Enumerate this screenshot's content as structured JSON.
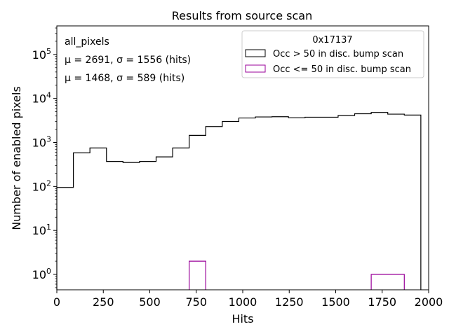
{
  "chart_data": {
    "type": "histogram",
    "title": "Results from source scan",
    "xlabel": "Hits",
    "ylabel": "Number of enabled pixels",
    "xlim": [
      0,
      2000
    ],
    "ylim_log10": [
      -0.35,
      5.65
    ],
    "y_scale": "log",
    "x_ticks": [
      0,
      250,
      500,
      750,
      1000,
      1250,
      1500,
      1750,
      2000
    ],
    "x_tick_labels": [
      "0",
      "250",
      "500",
      "750",
      "1000",
      "1250",
      "1500",
      "1750",
      "2000"
    ],
    "y_ticks_log10": [
      0,
      1,
      2,
      3,
      4,
      5
    ],
    "y_tick_labels": [
      {
        "base": "10",
        "exp": "0"
      },
      {
        "base": "10",
        "exp": "1"
      },
      {
        "base": "10",
        "exp": "2"
      },
      {
        "base": "10",
        "exp": "3"
      },
      {
        "base": "10",
        "exp": "4"
      },
      {
        "base": "10",
        "exp": "5"
      }
    ],
    "bin_edges": [
      0,
      89,
      178,
      267,
      356,
      445,
      534,
      623,
      712,
      801,
      890,
      979,
      1068,
      1157,
      1246,
      1335,
      1424,
      1513,
      1602,
      1691,
      1780,
      1869,
      1958
    ],
    "series": [
      {
        "name": "Occ > 50 in disc. bump scan",
        "color": "#000000",
        "counts": [
          95,
          580,
          750,
          370,
          350,
          370,
          470,
          750,
          1450,
          2300,
          3000,
          3600,
          3800,
          3850,
          3650,
          3750,
          3750,
          4100,
          4500,
          4800,
          4400,
          4200
        ]
      },
      {
        "name": "Occ <= 50 in disc. bump scan",
        "color": "#990099",
        "counts": [
          0,
          0,
          0,
          0,
          0,
          0,
          0,
          0,
          2,
          0,
          0,
          0,
          0,
          0,
          0,
          0,
          0,
          0,
          0,
          1,
          1,
          0
        ]
      }
    ],
    "legend": {
      "title": "0x17137",
      "placement": "upper-right"
    },
    "annotations": {
      "group_label": "all_pixels",
      "stats_black": "μ = 2691, σ = 1556 (hits)",
      "stats_purple": "μ = 1468, σ = 589 (hits)",
      "stats_purple_color": "#990099"
    }
  }
}
